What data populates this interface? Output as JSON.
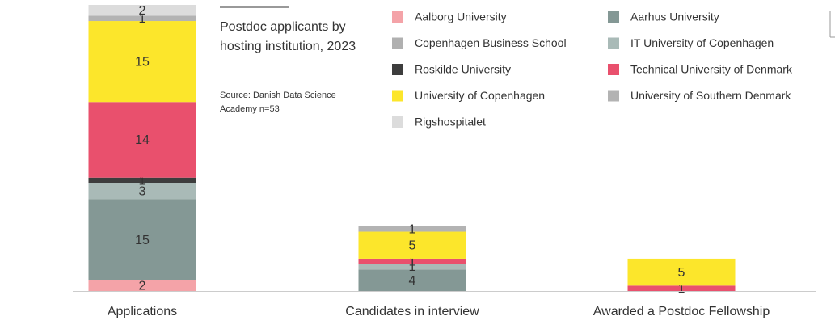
{
  "chart_data": {
    "type": "stacked_bar",
    "title": "Postdoc applicants by hosting institution, 2023",
    "subtitle": "Source: Danish Data Science Academy n=53",
    "categories": [
      "Applications",
      "Candidates in interview",
      "Awarded a Postdoc Fellowship"
    ],
    "series": [
      {
        "name": "Aalborg University",
        "color": "#f4a3a8",
        "values": [
          2,
          null,
          null
        ]
      },
      {
        "name": "Aarhus University",
        "color": "#849895",
        "values": [
          15,
          4,
          null
        ]
      },
      {
        "name": "Copenhagen Business School",
        "color": "#b0b0b0",
        "values": [
          null,
          null,
          null
        ]
      },
      {
        "name": "IT University of Copenhagen",
        "color": "#a9bab7",
        "values": [
          3,
          1,
          null
        ]
      },
      {
        "name": "Roskilde University",
        "color": "#3d3d3d",
        "values": [
          1,
          null,
          null
        ]
      },
      {
        "name": "Technical University of Denmark",
        "color": "#e9506d",
        "values": [
          14,
          1,
          1
        ]
      },
      {
        "name": "University of Copenhagen",
        "color": "#fce62b",
        "values": [
          15,
          5,
          5
        ]
      },
      {
        "name": "University of Southern Denmark",
        "color": "#b3b3b3",
        "values": [
          1,
          1,
          null
        ]
      },
      {
        "name": "Rigshospitalet",
        "color": "#dcdcdc",
        "values": [
          2,
          null,
          null
        ]
      }
    ]
  }
}
